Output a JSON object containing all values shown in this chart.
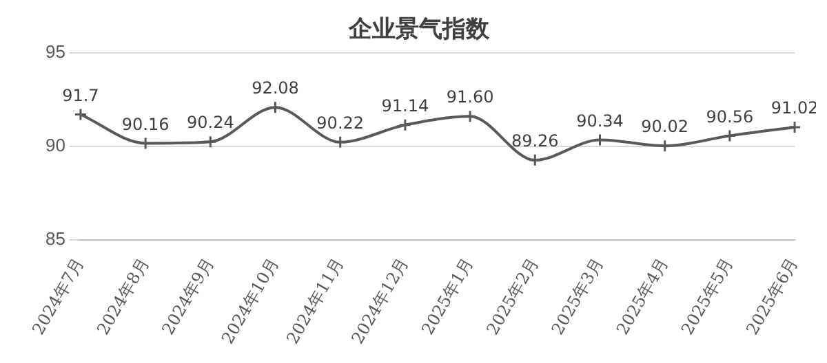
{
  "chart_data": {
    "type": "line",
    "title": "企业景气指数",
    "categories": [
      "2024年7月",
      "2024年8月",
      "2024年9月",
      "2024年10月",
      "2024年11月",
      "2024年12月",
      "2025年1月",
      "2025年2月",
      "2025年3月",
      "2025年4月",
      "2025年5月",
      "2025年6月"
    ],
    "series": [
      {
        "color": "#595959",
        "values": [
          91.7,
          90.16,
          90.24,
          92.08,
          90.22,
          91.14,
          91.6,
          89.26,
          90.34,
          90.02,
          90.56,
          91.02
        ],
        "value_labels": [
          "91.7",
          "90.16",
          "90.24",
          "92.08",
          "90.22",
          "91.14",
          "91.60",
          "89.26",
          "90.34",
          "90.02",
          "90.56",
          "91.02"
        ]
      }
    ],
    "ylim": [
      85,
      95
    ],
    "yticks": [
      85,
      90,
      95
    ],
    "grid": "y",
    "legend": false,
    "marker": "cross",
    "line_style": "solid"
  }
}
